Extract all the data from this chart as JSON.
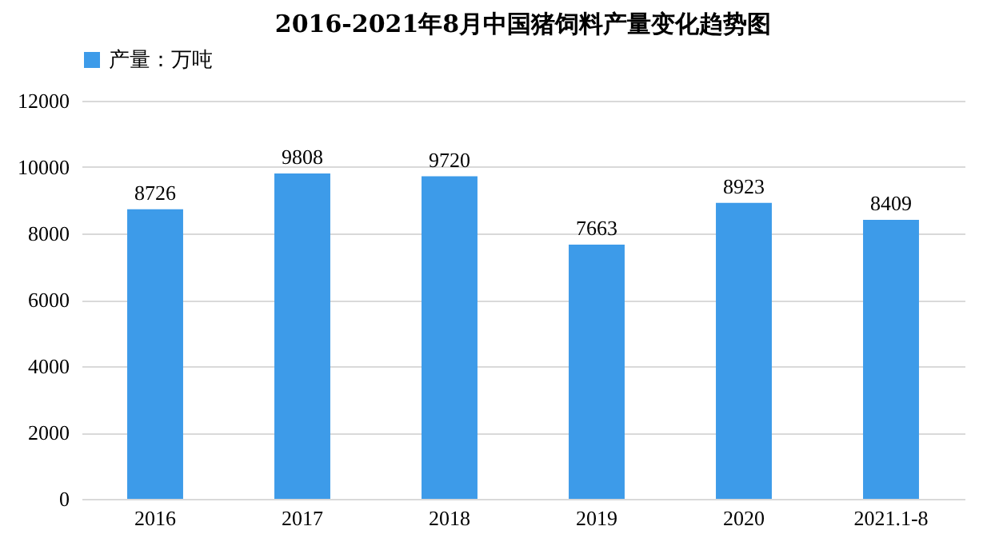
{
  "chart_data": {
    "type": "bar",
    "title": "2016-2021年8月中国猪饲料产量变化趋势图",
    "categories": [
      "2016",
      "2017",
      "2018",
      "2019",
      "2020",
      "2021.1-8"
    ],
    "series": [
      {
        "name": "产量：万吨",
        "color": "#3d9be9",
        "values": [
          8726,
          9808,
          9720,
          7663,
          8923,
          8409
        ]
      }
    ],
    "ylim": [
      0,
      12000
    ],
    "yticks": [
      0,
      2000,
      4000,
      6000,
      8000,
      10000,
      12000
    ],
    "grid": "y",
    "legend": "top",
    "data_labels": true
  }
}
